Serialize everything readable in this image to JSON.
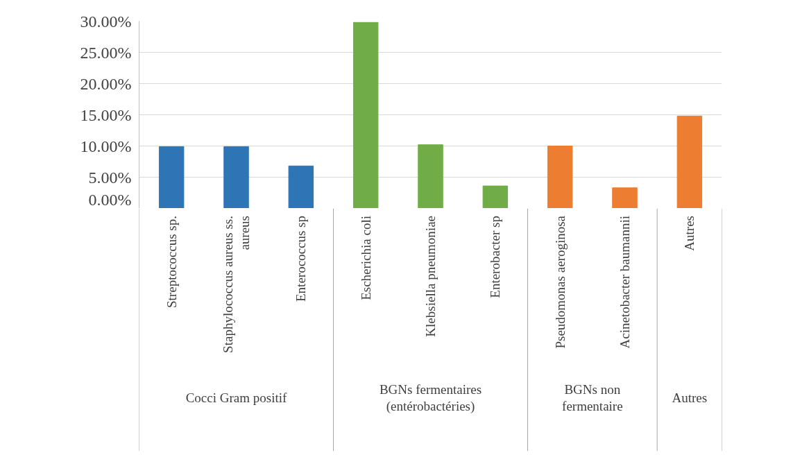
{
  "chart_data": {
    "type": "bar",
    "categories": [
      "Streptococcus sp.",
      "Staphylococcus aureus ss. aureus",
      "Enterococcus sp",
      "Escherichia coli",
      "Klebsiella pneumoniae",
      "Enterobacter sp",
      "Pseudomonas aeroginosa",
      "Acinetobacter baumannii",
      "Autres"
    ],
    "values": [
      9.9,
      9.9,
      6.8,
      29.8,
      10.2,
      3.6,
      10.0,
      3.3,
      14.8
    ],
    "colors": [
      "#2e75b6",
      "#2e75b6",
      "#2e75b6",
      "#70ad47",
      "#70ad47",
      "#70ad47",
      "#ed7d31",
      "#ed7d31",
      "#ed7d31"
    ],
    "annotations": [
      "Cocci Gram positif",
      "BGNs fermentaires (entérobactéries)",
      "BGNs non fermentaire",
      "Autres"
    ],
    "ylim": [
      0,
      30
    ],
    "yticks": [
      {
        "value": 0,
        "label": "0.00%"
      },
      {
        "value": 5,
        "label": "5.00%"
      },
      {
        "value": 10,
        "label": "10.00%"
      },
      {
        "value": 15,
        "label": "15.00%"
      },
      {
        "value": 20,
        "label": "20.00%"
      },
      {
        "value": 25,
        "label": "25.00%"
      },
      {
        "value": 30,
        "label": "30.00%"
      }
    ],
    "grid": "y"
  }
}
